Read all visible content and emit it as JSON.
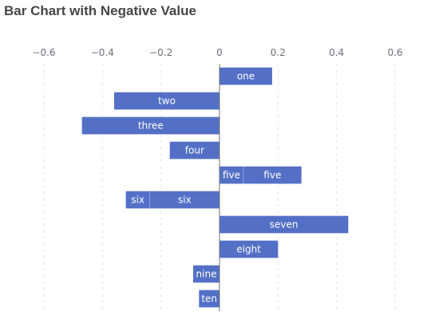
{
  "chart_data": {
    "type": "bar",
    "orientation": "horizontal",
    "title": "Bar Chart with Negative Value",
    "categories": [
      "one",
      "two",
      "three",
      "four",
      "five",
      "six",
      "seven",
      "eight",
      "nine",
      "ten"
    ],
    "series": [
      {
        "values": [
          0.18,
          -0.36,
          -0.47,
          -0.17,
          0.28,
          -0.32,
          0.44,
          0.2,
          -0.09,
          -0.07
        ]
      }
    ],
    "bar_labels": [
      [
        "one"
      ],
      [
        "two"
      ],
      [
        "three"
      ],
      [
        "four"
      ],
      [
        "five",
        "five"
      ],
      [
        "six",
        "six"
      ],
      [
        "seven"
      ],
      [
        "eight"
      ],
      [
        "nine"
      ],
      [
        "ten"
      ]
    ],
    "xaxis": {
      "position": "top",
      "ticks": [
        -0.6,
        -0.4,
        -0.2,
        0,
        0.2,
        0.4,
        0.6
      ],
      "tick_labels": [
        "−0.6",
        "−0.4",
        "−0.2",
        "0",
        "0.2",
        "0.4",
        "0.6"
      ]
    },
    "xlim": [
      -0.6,
      0.6
    ],
    "grid": "vertical dashed",
    "bar_color": "#5470c6",
    "grid_color": "#e0e6f1",
    "axis_line_color": "#6e7079"
  }
}
